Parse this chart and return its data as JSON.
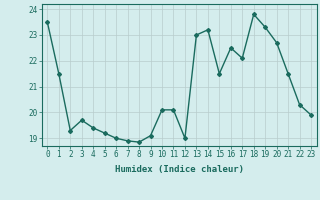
{
  "x": [
    0,
    1,
    2,
    3,
    4,
    5,
    6,
    7,
    8,
    9,
    10,
    11,
    12,
    13,
    14,
    15,
    16,
    17,
    18,
    19,
    20,
    21,
    22,
    23
  ],
  "y": [
    23.5,
    21.5,
    19.3,
    19.7,
    19.4,
    19.2,
    19.0,
    18.9,
    18.85,
    19.1,
    20.1,
    20.1,
    19.0,
    23.0,
    23.2,
    21.5,
    22.5,
    22.1,
    23.8,
    23.3,
    22.7,
    21.5,
    20.3,
    19.9
  ],
  "line_color": "#1a6b5e",
  "marker": "D",
  "marker_size": 2,
  "bg_color": "#d4eded",
  "grid_color": "#b8cccc",
  "xlabel": "Humidex (Indice chaleur)",
  "ylim": [
    18.7,
    24.2
  ],
  "xlim": [
    -0.5,
    23.5
  ],
  "yticks": [
    19,
    20,
    21,
    22,
    23,
    24
  ],
  "xticks": [
    0,
    1,
    2,
    3,
    4,
    5,
    6,
    7,
    8,
    9,
    10,
    11,
    12,
    13,
    14,
    15,
    16,
    17,
    18,
    19,
    20,
    21,
    22,
    23
  ],
  "xtick_labels": [
    "0",
    "1",
    "2",
    "3",
    "4",
    "5",
    "6",
    "7",
    "8",
    "9",
    "10",
    "11",
    "12",
    "13",
    "14",
    "15",
    "16",
    "17",
    "18",
    "19",
    "20",
    "21",
    "22",
    "23"
  ],
  "xlabel_fontsize": 6.5,
  "tick_fontsize": 5.5,
  "line_width": 1.0
}
